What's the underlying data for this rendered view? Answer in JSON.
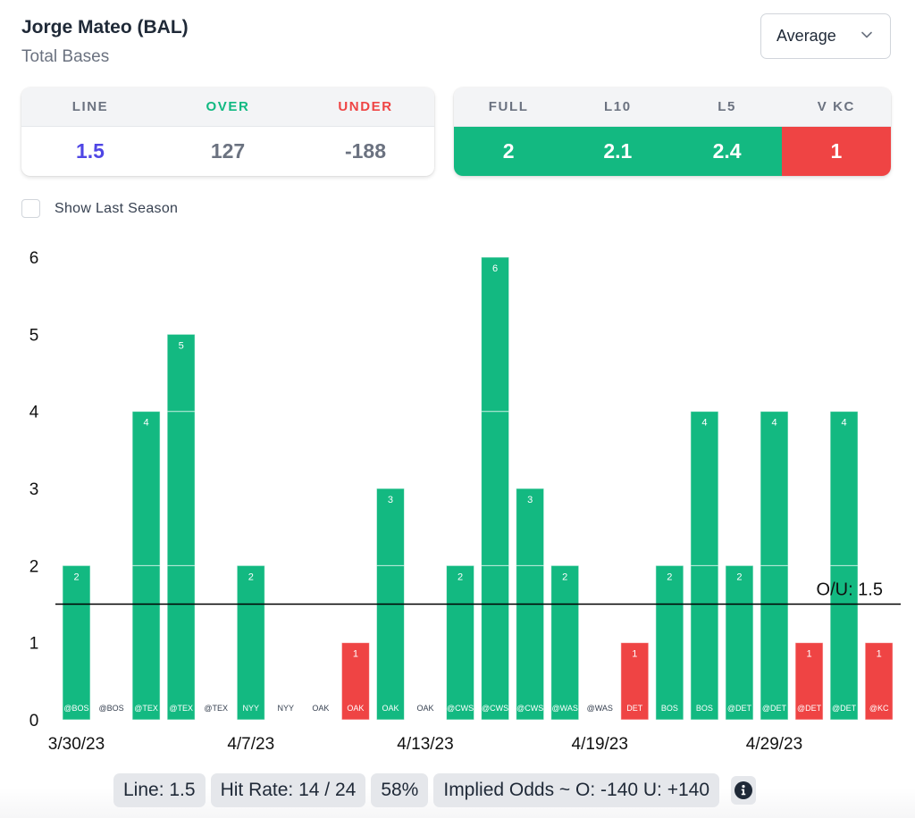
{
  "header": {
    "player": "Jorge Mateo (BAL)",
    "stat": "Total Bases"
  },
  "dropdown": {
    "selected": "Average"
  },
  "line_card": {
    "headers": [
      "LINE",
      "OVER",
      "UNDER"
    ],
    "values": [
      "1.5",
      "127",
      "-188"
    ],
    "header_colors": [
      "#6b7280",
      "#10b981",
      "#ef4444"
    ],
    "value_colors": [
      "#4f46e5",
      "#6b7280",
      "#6b7280"
    ]
  },
  "avg_card": {
    "headers": [
      "FULL",
      "L10",
      "L5",
      "V KC"
    ],
    "values": [
      "2",
      "2.1",
      "2.4",
      "1"
    ],
    "bg_colors": [
      "#13b981",
      "#13b981",
      "#13b981",
      "#ef4444"
    ]
  },
  "show_last_season": {
    "label": "Show Last Season",
    "checked": false
  },
  "colors": {
    "over": "#13b981",
    "under": "#ef4444",
    "line": "#000000"
  },
  "chart_data": {
    "type": "bar",
    "title": "",
    "xlabel": "",
    "ylabel": "",
    "ylim": [
      0,
      6
    ],
    "yticks": [
      0,
      1,
      2,
      3,
      4,
      5,
      6
    ],
    "categories": [
      "@BOS",
      "@BOS",
      "@TEX",
      "@TEX",
      "@TEX",
      "NYY",
      "NYY",
      "OAK",
      "OAK",
      "OAK",
      "OAK",
      "@CWS",
      "@CWS",
      "@CWS",
      "@WAS",
      "@WAS",
      "DET",
      "BOS",
      "BOS",
      "@DET",
      "@DET",
      "@DET",
      "@DET",
      "@KC"
    ],
    "values": [
      2,
      0,
      4,
      5,
      0,
      2,
      0,
      0,
      1,
      3,
      0,
      2,
      6,
      3,
      2,
      0,
      1,
      2,
      4,
      2,
      4,
      1,
      4,
      1
    ],
    "date_ticks": [
      {
        "index": 0,
        "label": "3/30/23"
      },
      {
        "index": 5,
        "label": "4/7/23"
      },
      {
        "index": 10,
        "label": "4/13/23"
      },
      {
        "index": 15,
        "label": "4/19/23"
      },
      {
        "index": 20,
        "label": "4/29/23"
      }
    ],
    "reference_line": {
      "value": 1.5,
      "label": "O/U: 1.5"
    },
    "grid": false,
    "legend": "none"
  },
  "footer": {
    "pills": [
      "Line: 1.5",
      "Hit Rate: 14 / 24",
      "58%",
      "Implied Odds ~ O: -140 U: +140"
    ],
    "info_icon": "info-circle-icon"
  }
}
